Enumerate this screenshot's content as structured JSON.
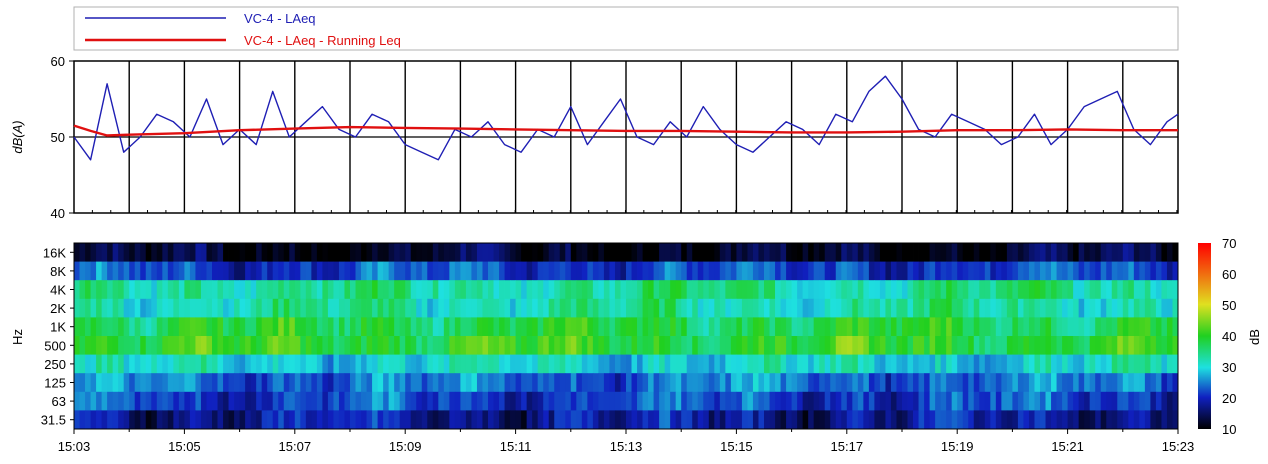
{
  "chart_data": [
    {
      "type": "line",
      "ylabel": "dB(A)",
      "ylim": [
        40,
        60
      ],
      "y_ticks": [
        "40",
        "50",
        "60"
      ],
      "x_ticks": [
        "15:03",
        "15:05",
        "15:07",
        "15:09",
        "15:11",
        "15:13",
        "15:15",
        "15:17",
        "15:19",
        "15:21",
        "15:23"
      ],
      "x_range_minutes": [
        0,
        20
      ],
      "grid": "vertical lines every minute, horizontal line at 50",
      "legend_position": "top",
      "series": [
        {
          "name": "VC-4 - LAeq",
          "color": "#1f1fb4",
          "x_minutes": [
            0,
            0.3,
            0.6,
            0.9,
            1.2,
            1.5,
            1.8,
            2.1,
            2.4,
            2.7,
            3.0,
            3.3,
            3.6,
            3.9,
            4.2,
            4.5,
            4.8,
            5.1,
            5.4,
            5.7,
            6.0,
            6.3,
            6.6,
            6.9,
            7.2,
            7.5,
            7.8,
            8.1,
            8.4,
            8.7,
            9.0,
            9.3,
            9.6,
            9.9,
            10.2,
            10.5,
            10.8,
            11.1,
            11.4,
            11.7,
            12.0,
            12.3,
            12.6,
            12.9,
            13.2,
            13.5,
            13.8,
            14.1,
            14.4,
            14.7,
            15.0,
            15.3,
            15.6,
            15.9,
            16.2,
            16.5,
            16.8,
            17.1,
            17.4,
            17.7,
            18.0,
            18.3,
            18.6,
            18.9,
            19.2,
            19.5,
            19.8,
            20.0
          ],
          "values": [
            50,
            47,
            57,
            48,
            50,
            53,
            52,
            50,
            55,
            49,
            51,
            49,
            56,
            50,
            52,
            54,
            51,
            50,
            53,
            52,
            49,
            48,
            47,
            51,
            50,
            52,
            49,
            48,
            51,
            50,
            54,
            49,
            52,
            55,
            50,
            49,
            52,
            50,
            54,
            51,
            49,
            48,
            50,
            52,
            51,
            49,
            53,
            52,
            56,
            58,
            55,
            51,
            50,
            53,
            52,
            51,
            49,
            50,
            53,
            49,
            51,
            54,
            55,
            56,
            51,
            49,
            52,
            53
          ]
        },
        {
          "name": "VC-4 - LAeq - Running Leq",
          "color": "#e01010",
          "x_minutes": [
            0,
            0.3,
            0.6,
            1,
            2,
            3,
            4,
            5,
            6,
            7,
            8,
            9,
            10,
            11,
            12,
            13,
            14,
            15,
            16,
            17,
            18,
            19,
            20
          ],
          "values": [
            51.5,
            50.8,
            50.2,
            50.3,
            50.5,
            50.9,
            51.1,
            51.3,
            51.2,
            51.1,
            51.0,
            50.9,
            50.8,
            50.8,
            50.7,
            50.6,
            50.6,
            50.7,
            50.9,
            50.9,
            51.0,
            50.9,
            50.9
          ]
        }
      ]
    },
    {
      "type": "heatmap",
      "ylabel": "Hz",
      "y_ticks": [
        "16K",
        "8K",
        "4K",
        "2K",
        "1K",
        "500",
        "250",
        "125",
        "63",
        "31.5"
      ],
      "x_ticks": [
        "15:03",
        "15:05",
        "15:07",
        "15:09",
        "15:11",
        "15:13",
        "15:15",
        "15:17",
        "15:19",
        "15:21",
        "15:23"
      ],
      "colorbar": {
        "label": "dB",
        "range": [
          10,
          70
        ],
        "ticks": [
          "70",
          "60",
          "50",
          "40",
          "30",
          "20",
          "10"
        ]
      },
      "band_levels_dB": {
        "16K": 12,
        "8K": 22,
        "4K": 34,
        "2K": 33,
        "1K": 38,
        "500": 40,
        "250": 30,
        "125": 24,
        "63": 22,
        "31.5": 18
      }
    }
  ]
}
